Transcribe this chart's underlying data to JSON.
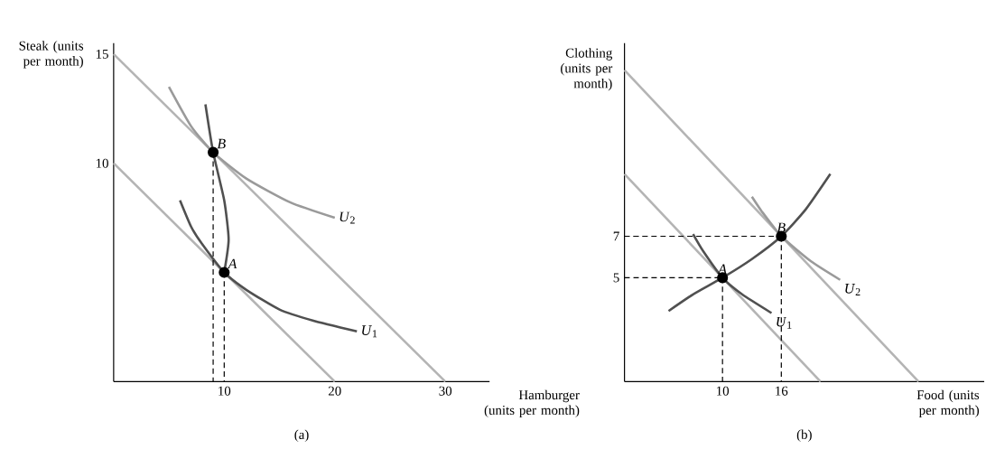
{
  "chart_data": [
    {
      "type": "line",
      "title": "(a)",
      "xlabel": "Hamburger (units per month)",
      "ylabel": "Steak (units per month)",
      "xlim": [
        0,
        34
      ],
      "ylim": [
        0,
        15.5
      ],
      "xticks": [
        10,
        20,
        30
      ],
      "yticks": [
        10,
        15
      ],
      "series": [
        {
          "color": "#b4b4b4",
          "x": [
            0,
            20
          ],
          "values": [
            10,
            0
          ]
        },
        {
          "color": "#b4b4b4",
          "x": [
            0,
            30
          ],
          "values": [
            15,
            0
          ]
        },
        {
          "name": "*U*$_{1}$",
          "color": "#505050",
          "x": [
            6,
            7,
            8,
            10,
            12,
            15,
            18,
            22
          ],
          "values": [
            8.3,
            7.1,
            6.3,
            5,
            4.2,
            3.3,
            2.8,
            2.3
          ]
        },
        {
          "name": "*U*$_{2}$",
          "color": "#9a9a9a",
          "x": [
            5,
            7,
            9,
            12,
            16,
            20
          ],
          "values": [
            13.5,
            11.7,
            10.5,
            9.3,
            8.2,
            7.5
          ]
        },
        {
          "color": "#505050",
          "x": [
            8.3,
            9,
            10,
            10.4,
            10
          ],
          "values": [
            12.7,
            10.5,
            8.3,
            6.5,
            5
          ]
        },
        {
          "color": "#000000",
          "line_style": "dashed",
          "x": [
            9,
            9
          ],
          "values": [
            10.5,
            0
          ]
        },
        {
          "color": "#000000",
          "line_style": "dashed",
          "x": [
            10,
            10
          ],
          "values": [
            5,
            0
          ]
        },
        {
          "type": "scatter",
          "marker": "circle",
          "color": "#000000",
          "x": [
            10,
            9
          ],
          "values": [
            5,
            10.5
          ]
        }
      ],
      "annotations": [
        {
          "text": "A",
          "x": 10,
          "y": 5
        },
        {
          "text": "B",
          "x": 9,
          "y": 10.5
        }
      ]
    },
    {
      "type": "line",
      "title": "(b)",
      "xlabel": "Food (units per month)",
      "ylabel": "Clothing (units per month)",
      "xlim": [
        0,
        36.7
      ],
      "ylim": [
        0,
        16.3
      ],
      "xticks": [
        10,
        16
      ],
      "yticks": [
        5,
        7
      ],
      "series": [
        {
          "color": "#b4b4b4",
          "x": [
            0,
            20
          ],
          "values": [
            10,
            0
          ]
        },
        {
          "color": "#b4b4b4",
          "x": [
            0,
            30
          ],
          "values": [
            15,
            0
          ]
        },
        {
          "name": "*U*$_{1}$",
          "color": "#505050",
          "x": [
            7,
            8,
            10,
            12,
            15
          ],
          "values": [
            7.1,
            6.3,
            5,
            4.2,
            3.3
          ]
        },
        {
          "name": "*U*$_{2}$",
          "color": "#9a9a9a",
          "x": [
            13,
            14,
            16,
            19,
            22
          ],
          "values": [
            8.9,
            8.2,
            7,
            5.8,
            4.9
          ]
        },
        {
          "color": "#505050",
          "x": [
            4.5,
            7,
            10,
            13,
            16,
            18.5,
            21
          ],
          "values": [
            3.4,
            4.2,
            5,
            5.9,
            7,
            8.3,
            10
          ]
        },
        {
          "color": "#000000",
          "line_style": "dashed",
          "x": [
            0,
            10
          ],
          "values": [
            5,
            5
          ]
        },
        {
          "color": "#000000",
          "line_style": "dashed",
          "x": [
            10,
            10
          ],
          "values": [
            5,
            0
          ]
        },
        {
          "color": "#000000",
          "line_style": "dashed",
          "x": [
            0,
            16
          ],
          "values": [
            7,
            7
          ]
        },
        {
          "color": "#000000",
          "line_style": "dashed",
          "x": [
            16,
            16
          ],
          "values": [
            7,
            0
          ]
        },
        {
          "type": "scatter",
          "marker": "circle",
          "color": "#000000",
          "x": [
            10,
            16
          ],
          "values": [
            5,
            7
          ]
        }
      ],
      "annotations": [
        {
          "text": "A",
          "x": 10,
          "y": 5
        },
        {
          "text": "B",
          "x": 16,
          "y": 7
        }
      ]
    }
  ]
}
